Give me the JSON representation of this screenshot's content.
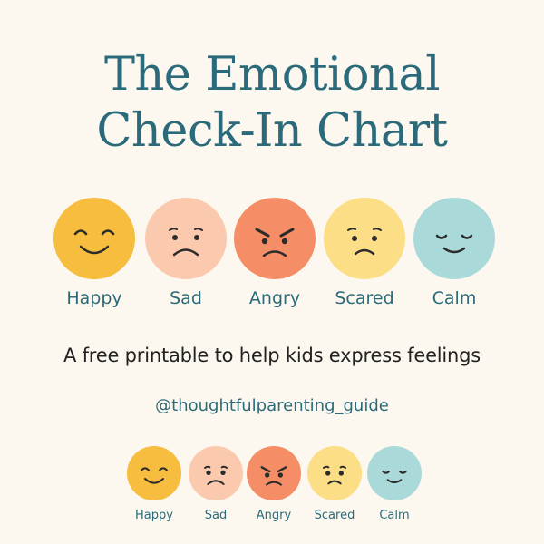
{
  "title_line1": "The Emotional",
  "title_line2": "Check-In Chart",
  "subtitle": "A free printable to help kids express feelings",
  "handle": "@thoughtfulparenting_guide",
  "emotions": [
    {
      "label": "Happy",
      "icon": "happy-face-icon",
      "color": "#f6bd3f"
    },
    {
      "label": "Sad",
      "icon": "sad-face-icon",
      "color": "#fbc9ae"
    },
    {
      "label": "Angry",
      "icon": "angry-face-icon",
      "color": "#f58e66"
    },
    {
      "label": "Scared",
      "icon": "scared-face-icon",
      "color": "#fbde85"
    },
    {
      "label": "Calm",
      "icon": "calm-face-icon",
      "color": "#a9d9d9"
    }
  ]
}
